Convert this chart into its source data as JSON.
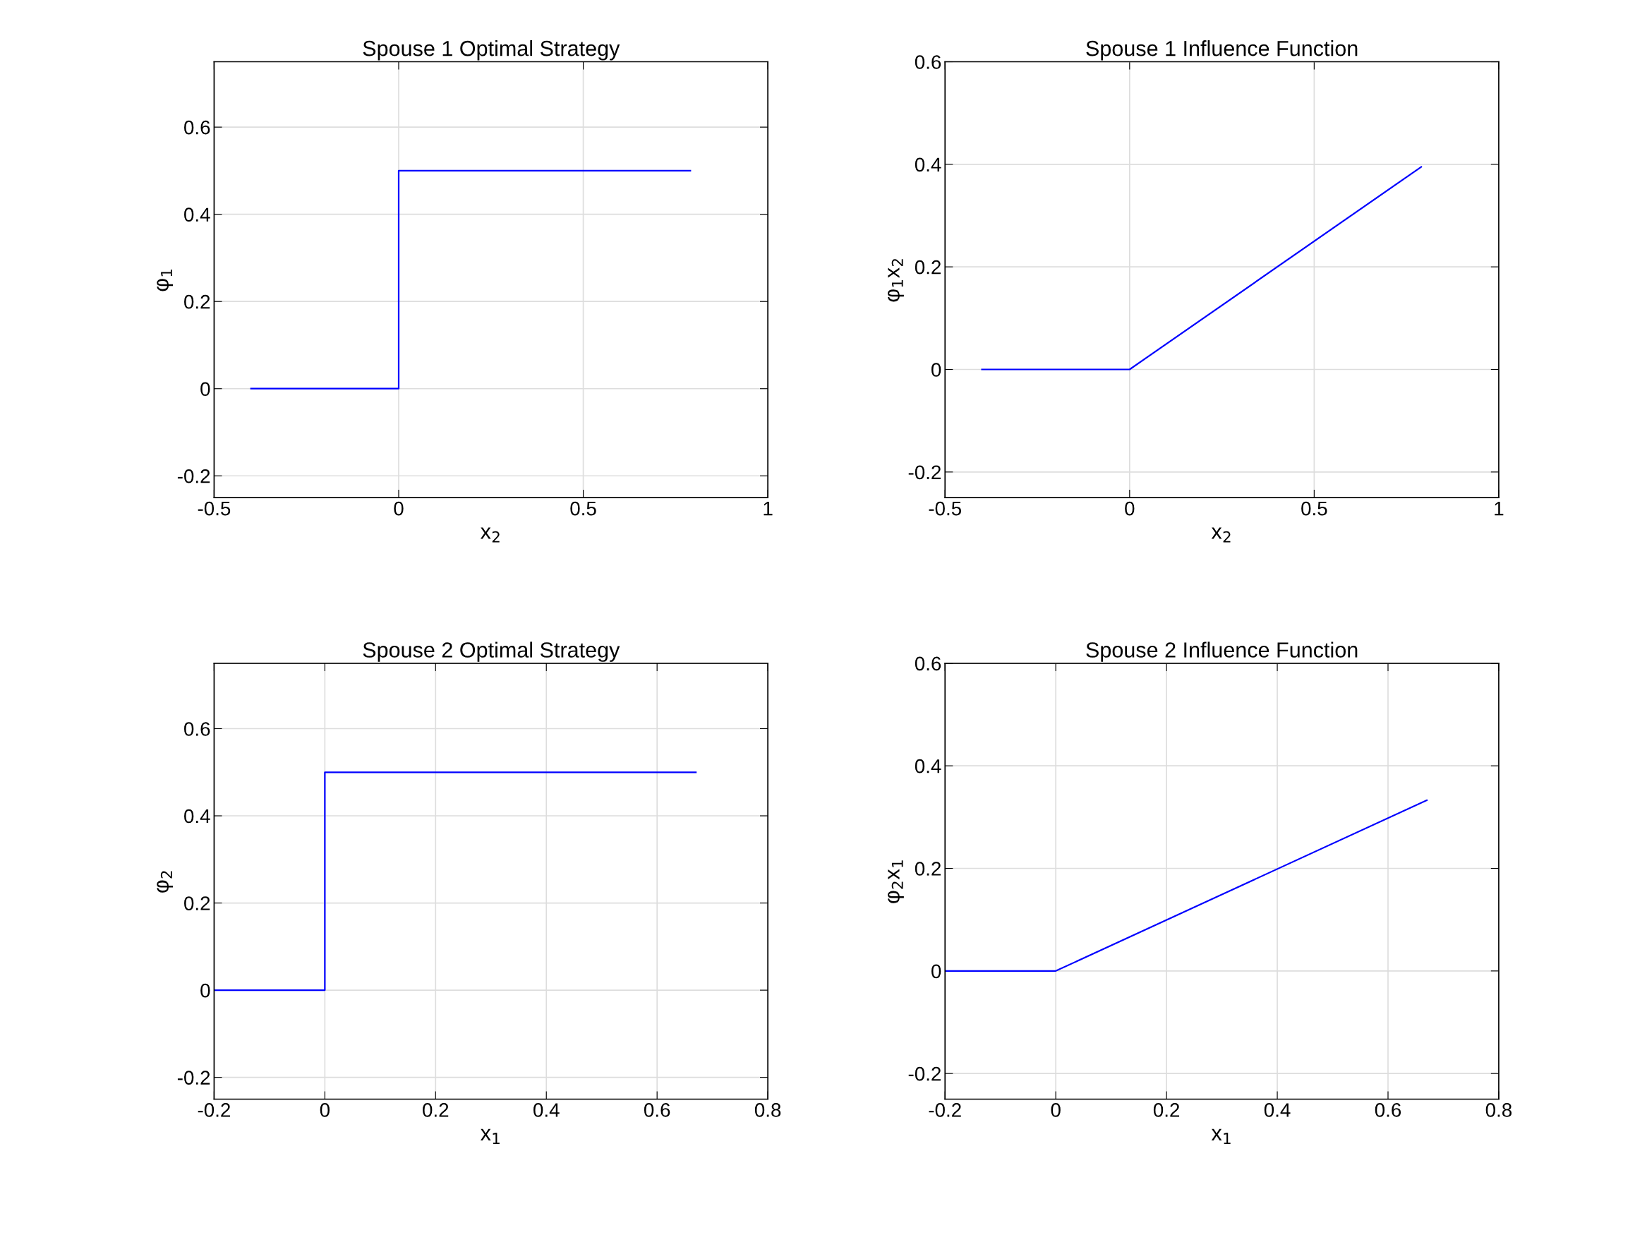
{
  "chart_data": [
    {
      "type": "line",
      "title": "Spouse 1 Optimal Strategy",
      "xlabel": "x$_{2}$",
      "ylabel": "φ$_{1}$",
      "x": [
        -0.4,
        0,
        0,
        0.79
      ],
      "series": [
        {
          "color": "#0000ff",
          "values": [
            0,
            0,
            0.5,
            0.5
          ]
        }
      ],
      "xlim": [
        -0.5,
        1
      ],
      "xticks": [
        -0.5,
        0,
        0.5,
        1
      ],
      "ylim": [
        -0.25,
        0.75
      ],
      "yticks": [
        -0.2,
        0,
        0.2,
        0.4,
        0.6
      ],
      "grid": true
    },
    {
      "type": "line",
      "title": "Spouse 1 Influence Function",
      "xlabel": "x$_{2}$",
      "ylabel": "φ$_{1}$x$_{2}$",
      "x": [
        -0.4,
        0,
        0.79
      ],
      "series": [
        {
          "color": "#0000ff",
          "values": [
            0,
            0,
            0.395
          ]
        }
      ],
      "xlim": [
        -0.5,
        1
      ],
      "xticks": [
        -0.5,
        0,
        0.5,
        1
      ],
      "ylim": [
        -0.25,
        0.6
      ],
      "yticks": [
        -0.2,
        0,
        0.2,
        0.4,
        0.6
      ],
      "grid": true
    },
    {
      "type": "line",
      "title": "Spouse 2 Optimal Strategy",
      "xlabel": "x$_{1}$",
      "ylabel": "φ$_{2}$",
      "x": [
        -0.2,
        0,
        0,
        0.67
      ],
      "series": [
        {
          "color": "#0000ff",
          "values": [
            0,
            0,
            0.5,
            0.5
          ]
        }
      ],
      "xlim": [
        -0.2,
        0.8
      ],
      "xticks": [
        -0.2,
        0,
        0.2,
        0.4,
        0.6,
        0.8
      ],
      "ylim": [
        -0.25,
        0.75
      ],
      "yticks": [
        -0.2,
        0,
        0.2,
        0.4,
        0.6
      ],
      "grid": true
    },
    {
      "type": "line",
      "title": "Spouse 2 Influence Function",
      "xlabel": "x$_{1}$",
      "ylabel": "φ$_{2}$x$_{1}$",
      "x": [
        -0.2,
        0,
        0.67
      ],
      "series": [
        {
          "color": "#0000ff",
          "values": [
            0,
            0,
            0.333
          ]
        }
      ],
      "xlim": [
        -0.2,
        0.8
      ],
      "xticks": [
        -0.2,
        0,
        0.2,
        0.4,
        0.6,
        0.8
      ],
      "ylim": [
        -0.25,
        0.6
      ],
      "yticks": [
        -0.2,
        0,
        0.2,
        0.4,
        0.6
      ],
      "grid": true
    }
  ]
}
